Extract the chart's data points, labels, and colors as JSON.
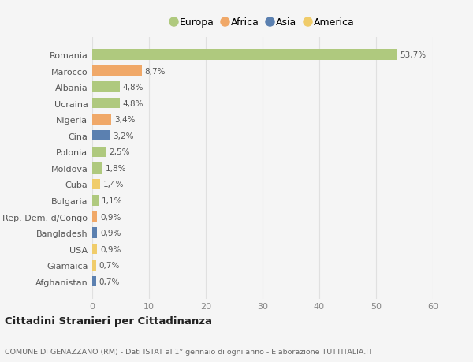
{
  "countries": [
    "Romania",
    "Marocco",
    "Albania",
    "Ucraina",
    "Nigeria",
    "Cina",
    "Polonia",
    "Moldova",
    "Cuba",
    "Bulgaria",
    "Rep. Dem. d/Congo",
    "Bangladesh",
    "USA",
    "Giamaica",
    "Afghanistan"
  ],
  "values": [
    53.7,
    8.7,
    4.8,
    4.8,
    3.4,
    3.2,
    2.5,
    1.8,
    1.4,
    1.1,
    0.9,
    0.9,
    0.9,
    0.7,
    0.7
  ],
  "labels": [
    "53,7%",
    "8,7%",
    "4,8%",
    "4,8%",
    "3,4%",
    "3,2%",
    "2,5%",
    "1,8%",
    "1,4%",
    "1,1%",
    "0,9%",
    "0,9%",
    "0,9%",
    "0,7%",
    "0,7%"
  ],
  "continent": [
    "Europa",
    "Africa",
    "Europa",
    "Europa",
    "Africa",
    "Asia",
    "Europa",
    "Europa",
    "America",
    "Europa",
    "Africa",
    "Asia",
    "America",
    "America",
    "Asia"
  ],
  "colors": {
    "Europa": "#afc97e",
    "Africa": "#f0a868",
    "Asia": "#5b80b0",
    "America": "#f0cc6a"
  },
  "legend_order": [
    "Europa",
    "Africa",
    "Asia",
    "America"
  ],
  "title": "Cittadini Stranieri per Cittadinanza",
  "subtitle": "COMUNE DI GENAZZANO (RM) - Dati ISTAT al 1° gennaio di ogni anno - Elaborazione TUTTITALIA.IT",
  "xlim": [
    0,
    60
  ],
  "xticks": [
    0,
    10,
    20,
    30,
    40,
    50,
    60
  ],
  "background_color": "#f5f5f5",
  "grid_color": "#e0e0e0",
  "bar_height": 0.65
}
